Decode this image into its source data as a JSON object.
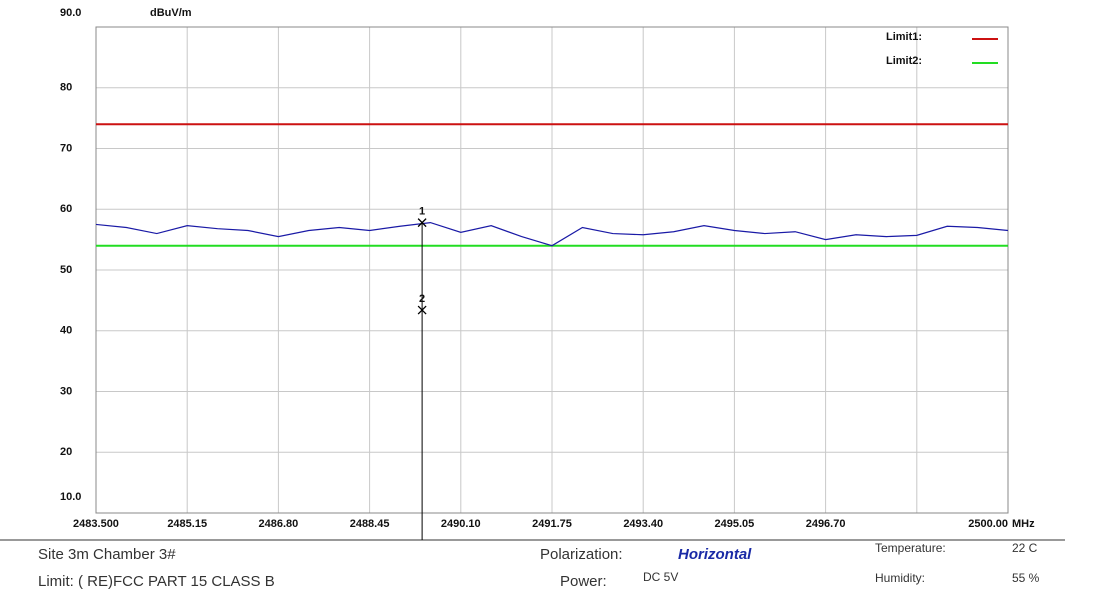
{
  "chart_data": {
    "type": "line",
    "y_unit": "dBuV/m",
    "x_unit": "MHz",
    "xlim": [
      2483.5,
      2500
    ],
    "ylim": [
      10,
      90
    ],
    "xticks": [
      {
        "value": 2483.5,
        "label": "2483.500"
      },
      2485.15,
      {
        "value": 2486.8,
        "label": "2486.80"
      },
      2488.45,
      {
        "value": 2490.1,
        "label": "2490.10"
      },
      2491.75,
      {
        "value": 2493.4,
        "label": "2493.40"
      },
      2495.05,
      {
        "value": 2496.7,
        "label": "2496.70"
      },
      {
        "value": 2498.35
      },
      {
        "value": 2500,
        "label": "2500.00"
      }
    ],
    "yticks": [
      {
        "value": 10,
        "label": "10.0"
      },
      20,
      30,
      40,
      50,
      60,
      70,
      80,
      {
        "value": 90,
        "label": "90.0"
      }
    ],
    "grid": true,
    "legend": "upper right",
    "x": [
      2483.5,
      2484.05,
      2484.6,
      2485.15,
      2485.7,
      2486.25,
      2486.8,
      2487.35,
      2487.9,
      2488.45,
      2489.0,
      2489.55,
      2490.1,
      2490.65,
      2491.2,
      2491.75,
      2492.3,
      2492.85,
      2493.4,
      2493.95,
      2494.5,
      2495.05,
      2495.6,
      2496.15,
      2496.7,
      2497.25,
      2497.8,
      2498.35,
      2498.9,
      2499.45,
      2500
    ],
    "series": [
      {
        "color": "#1a1aa6",
        "values": [
          57.5,
          57,
          56,
          57.3,
          56.8,
          56.5,
          55.5,
          56.5,
          57,
          56.5,
          57.2,
          57.8,
          56.2,
          57.3,
          55.5,
          54,
          57,
          56,
          55.8,
          56.3,
          57.3,
          56.5,
          56,
          56.3,
          55,
          55.8,
          55.5,
          55.7,
          57.2,
          57,
          56.5
        ]
      }
    ],
    "limits": [
      {
        "name": "Limit1:",
        "color": "#cc1111",
        "value": 74
      },
      {
        "name": "Limit2:",
        "color": "#22dd22",
        "value": 54
      }
    ],
    "markers": [
      {
        "label": "1",
        "x": 2489.4,
        "y": 57.8
      },
      {
        "label": "2",
        "x": 2489.4,
        "y": 43.4
      }
    ]
  },
  "info": {
    "site": "Site  3m Chamber 3#",
    "limit": "Limit:  ( RE)FCC PART 15 CLASS B",
    "polarization_label": "Polarization:",
    "polarization": "Horizontal",
    "power_label": "Power:",
    "power": "DC 5V",
    "temperature_label": "Temperature:",
    "temperature": "22 C",
    "humidity_label": "Humidity:",
    "humidity": "55 %"
  }
}
